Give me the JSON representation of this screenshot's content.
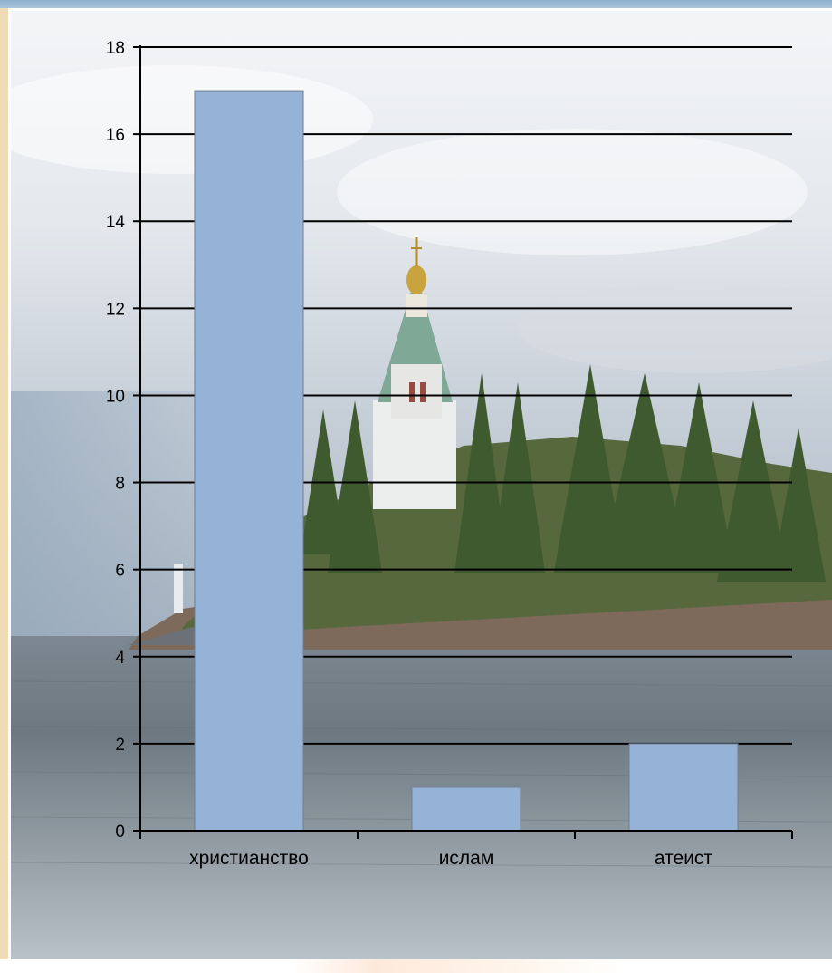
{
  "chart_data": {
    "type": "bar",
    "categories": [
      "христианство",
      "ислам",
      "атеист"
    ],
    "values": [
      17,
      1,
      2
    ],
    "ylim": [
      0,
      18
    ],
    "yticks": [
      0,
      2,
      4,
      6,
      8,
      10,
      12,
      14,
      16,
      18
    ],
    "grid": true,
    "bar_color": "#95b3d7"
  }
}
